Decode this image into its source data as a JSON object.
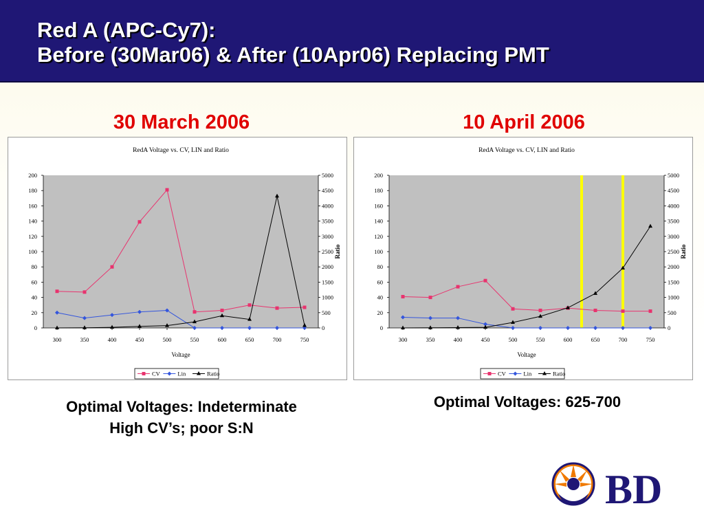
{
  "slide": {
    "title_line1": "Red A (APC-Cy7):",
    "title_line2": "Before (30Mar06) & After (10Apr06) Replacing PMT",
    "title_bg_color": "#1f1775",
    "left_heading": "30 March 2006",
    "right_heading": "10 April 2006",
    "heading_color": "#e00000",
    "left_caption_line1": "Optimal Voltages: Indeterminate",
    "left_caption_line2": "High CV’s; poor S:N",
    "right_caption": "Optimal Voltages: 625-700",
    "logo": {
      "text": "BD",
      "icon": "bd-sunburst-logo-icon",
      "text_color": "#1f1775",
      "accent_color": "#f07a00"
    }
  },
  "chart_data": [
    {
      "type": "line",
      "title": "RedA Voltage vs. CV, LIN and Ratio",
      "xlabel": "Voltage",
      "ylabel": "",
      "y2label": "Ratio",
      "categories": [
        "300",
        "350",
        "400",
        "450",
        "500",
        "550",
        "600",
        "650",
        "700",
        "750"
      ],
      "ylim": [
        0,
        200
      ],
      "y2lim": [
        0,
        5000
      ],
      "yticks": [
        "0",
        "20",
        "40",
        "60",
        "80",
        "100",
        "120",
        "140",
        "160",
        "180",
        "200"
      ],
      "y2ticks": [
        "0",
        "500",
        "1000",
        "1500",
        "2000",
        "2500",
        "3000",
        "3500",
        "4000",
        "4500",
        "5000"
      ],
      "plot_background": "#c0c0c0",
      "grid": false,
      "legend_position": "bottom",
      "series": [
        {
          "name": "CV",
          "axis": "left",
          "color": "#e8336e",
          "marker": "square",
          "values": [
            48,
            47,
            80,
            139,
            181,
            21,
            23,
            30,
            26,
            27
          ]
        },
        {
          "name": "Lin",
          "axis": "left",
          "color": "#3355dd",
          "marker": "diamond",
          "values": [
            20,
            13,
            17,
            21,
            23,
            0,
            0,
            0,
            0,
            0
          ]
        },
        {
          "name": "Ratio",
          "axis": "right",
          "color": "#000000",
          "marker": "triangle",
          "values": [
            0,
            5,
            20,
            50,
            75,
            200,
            400,
            280,
            4320,
            80
          ]
        }
      ],
      "highlights": []
    },
    {
      "type": "line",
      "title": "RedA Voltage vs. CV, LIN and Ratio",
      "xlabel": "Voltage",
      "ylabel": "",
      "y2label": "Ratio",
      "categories": [
        "300",
        "350",
        "400",
        "450",
        "500",
        "550",
        "600",
        "650",
        "700",
        "750"
      ],
      "ylim": [
        0,
        200
      ],
      "y2lim": [
        0,
        5000
      ],
      "yticks": [
        "0",
        "20",
        "40",
        "60",
        "80",
        "100",
        "120",
        "140",
        "160",
        "180",
        "200"
      ],
      "y2ticks": [
        "0",
        "500",
        "1000",
        "1500",
        "2000",
        "2500",
        "3000",
        "3500",
        "4000",
        "4500",
        "5000"
      ],
      "plot_background": "#c0c0c0",
      "grid": false,
      "legend_position": "bottom",
      "series": [
        {
          "name": "CV",
          "axis": "left",
          "color": "#e8336e",
          "marker": "square",
          "values": [
            41,
            40,
            54,
            62,
            25,
            23,
            26,
            23,
            22,
            22
          ]
        },
        {
          "name": "Lin",
          "axis": "left",
          "color": "#3355dd",
          "marker": "diamond",
          "values": [
            14,
            13,
            13,
            5,
            0,
            0,
            0,
            0,
            0,
            0
          ]
        },
        {
          "name": "Ratio",
          "axis": "right",
          "color": "#000000",
          "marker": "triangle",
          "values": [
            0,
            5,
            10,
            20,
            180,
            380,
            660,
            1130,
            1960,
            3330
          ]
        }
      ],
      "highlights": [
        {
          "voltage": 625,
          "color": "#ffff00"
        },
        {
          "voltage": 700,
          "color": "#ffff00"
        }
      ]
    }
  ]
}
